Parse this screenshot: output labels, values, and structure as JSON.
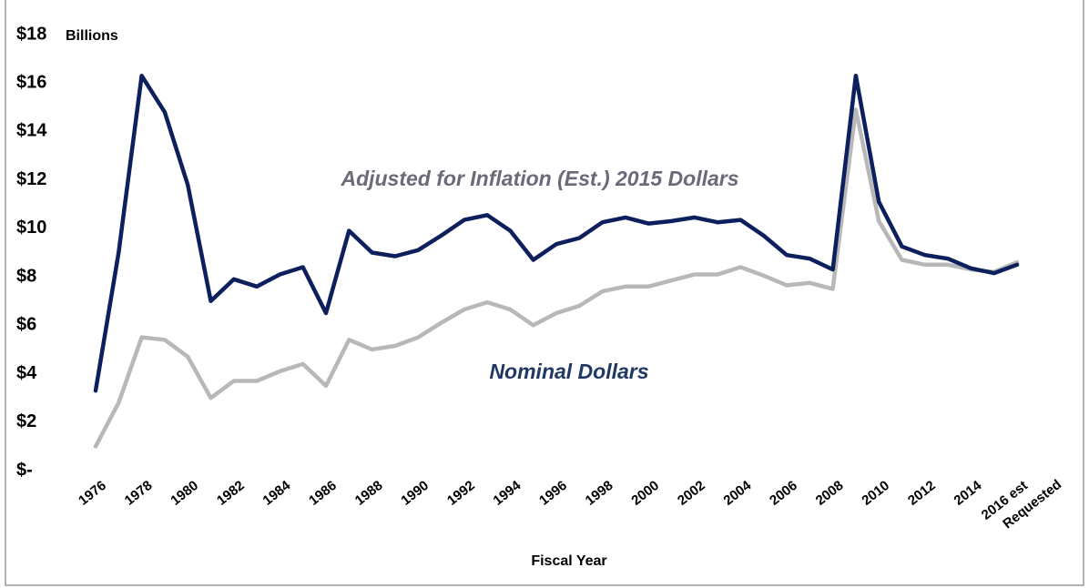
{
  "chart_data": {
    "type": "line",
    "x_label": "Fiscal Year",
    "y_unit": "Billions",
    "annotations": [
      "Adjusted for Inflation (Est.) 2015 Dollars",
      "Nominal Dollars"
    ],
    "categories": [
      "1976",
      null,
      "1978",
      null,
      "1980",
      null,
      "1982",
      null,
      "1984",
      null,
      "1986",
      null,
      "1988",
      null,
      "1990",
      null,
      "1992",
      null,
      "1994",
      null,
      "1996",
      null,
      "1998",
      null,
      "2000",
      null,
      "2002",
      null,
      "2004",
      null,
      "2006",
      null,
      "2008",
      null,
      "2010",
      null,
      "2012",
      null,
      "2014",
      null,
      "2016 est Requested"
    ],
    "series": [
      {
        "name": "Adjusted for Inflation (Est.) 2015 Dollars",
        "color": "#0d1f5c",
        "values": [
          3.3,
          9.0,
          16.3,
          14.8,
          11.8,
          7.0,
          7.9,
          7.6,
          8.1,
          8.4,
          6.5,
          9.9,
          9.0,
          8.85,
          9.1,
          9.7,
          10.35,
          10.55,
          9.9,
          8.7,
          9.35,
          9.6,
          10.25,
          10.45,
          10.2,
          10.3,
          10.45,
          10.25,
          10.35,
          9.7,
          8.9,
          8.75,
          8.3,
          16.3,
          11.1,
          9.25,
          8.9,
          8.75,
          8.35,
          8.15,
          8.5
        ]
      },
      {
        "name": "Nominal Dollars",
        "color": "#b8b8b8",
        "values": [
          1.0,
          2.8,
          5.5,
          5.4,
          4.7,
          3.0,
          3.7,
          3.7,
          4.1,
          4.4,
          3.5,
          5.4,
          5.0,
          5.15,
          5.5,
          6.1,
          6.65,
          6.95,
          6.65,
          6.0,
          6.5,
          6.8,
          7.4,
          7.6,
          7.6,
          7.85,
          8.1,
          8.1,
          8.4,
          8.05,
          7.65,
          7.75,
          7.5,
          14.9,
          10.3,
          8.7,
          8.5,
          8.5,
          8.3,
          8.2,
          8.6
        ]
      }
    ],
    "ylim": [
      0,
      18
    ],
    "yticks": [
      {
        "value": 0,
        "label": "$-"
      },
      {
        "value": 2,
        "label": "$2"
      },
      {
        "value": 4,
        "label": "$4"
      },
      {
        "value": 6,
        "label": "$6"
      },
      {
        "value": 8,
        "label": "$8"
      },
      {
        "value": 10,
        "label": "$10"
      },
      {
        "value": 12,
        "label": "$12"
      },
      {
        "value": 14,
        "label": "$14"
      },
      {
        "value": 16,
        "label": "$16"
      },
      {
        "value": 18,
        "label": "$18"
      }
    ],
    "grid": false
  }
}
